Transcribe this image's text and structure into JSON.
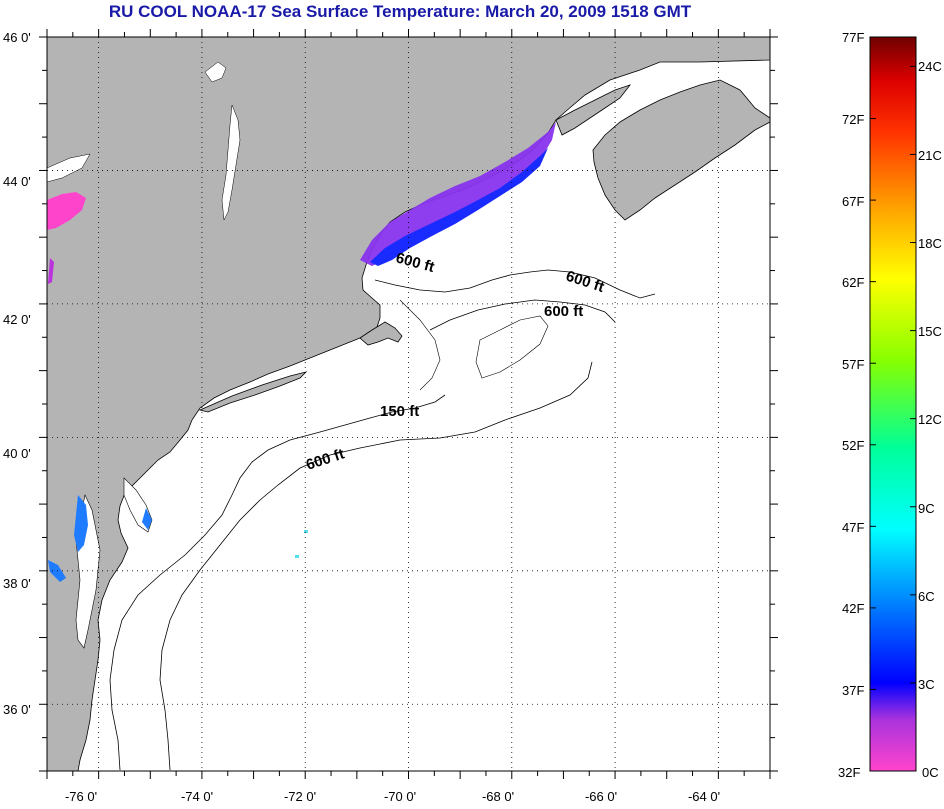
{
  "title": "RU COOL  NOAA-17  Sea Surface Temperature:  March 20, 2009 1518 GMT",
  "map": {
    "lon_range": [
      -77,
      -63
    ],
    "lat_range": [
      35,
      46
    ],
    "lon_ticks": [
      "-76 0'",
      "-74 0'",
      "-72 0'",
      "-70 0'",
      "-68 0'",
      "-66 0'",
      "-64 0'"
    ],
    "lat_ticks": [
      "46 0'",
      "44 0'",
      "42 0'",
      "40 0'",
      "38 0'",
      "36 0'"
    ],
    "grid": "dotted",
    "colors": {
      "land": "#b4b4b4",
      "water": "#ffffff",
      "coastline": "#000000"
    },
    "contour_labels": [
      "600 ft",
      "600 ft",
      "600 ft",
      "150 ft",
      "600 ft"
    ]
  },
  "colorbar": {
    "range_f": [
      32,
      77
    ],
    "range_c": [
      0,
      25
    ],
    "f_labels": [
      "77F",
      "72F",
      "67F",
      "62F",
      "57F",
      "52F",
      "47F",
      "42F",
      "37F",
      "32F"
    ],
    "c_labels": [
      "24C",
      "21C",
      "18C",
      "15C",
      "12C",
      "9C",
      "6C",
      "3C",
      "0C"
    ],
    "gradient": [
      "#ff44cc",
      "#9933dd",
      "#0000ff",
      "#0088ff",
      "#00ffff",
      "#00ff88",
      "#88ff00",
      "#ffff00",
      "#ffaa00",
      "#ff4400",
      "#dd0000",
      "#7a0000"
    ]
  }
}
